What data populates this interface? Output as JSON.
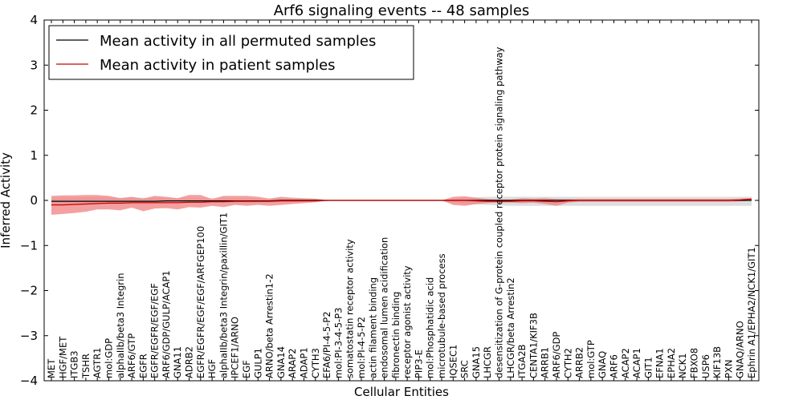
{
  "chart_data": {
    "type": "line",
    "title": "Arf6 signaling events -- 48 samples",
    "xlabel": "Cellular Entities",
    "ylabel": "Inferred Activity",
    "ylim": [
      -4,
      4
    ],
    "yticks": [
      -4,
      -3,
      -2,
      -1,
      0,
      1,
      2,
      3,
      4
    ],
    "ytick_labels": [
      "−4",
      "−3",
      "−2",
      "−1",
      "0",
      "1",
      "2",
      "3",
      "4"
    ],
    "grid": false,
    "legend_position": "top-left",
    "colors": {
      "permuted_line": "#000000",
      "patient_line": "#cc0000",
      "patient_band": "#f08080",
      "permuted_band": "#c8c8c8"
    },
    "categories": [
      "MET",
      "HGF/MET",
      "ITGB3",
      "TSHR",
      "AGTR1",
      "mol:GDP",
      "alphaIIb/beta3 Integrin",
      "ARF6/GTP",
      "EGFR",
      "EGFR/EGFR/EGF/EGF",
      "ARF6/GDP/GULP/ACAP1",
      "GNA11",
      "ADRB2",
      "EGFR/EGFR/EGF/EGF/ARFGEP100",
      "HGF",
      "alphaIIb/beta3 Integrin/paxillin/GIT1",
      "IPCEF1/ARNO",
      "EGF",
      "GULP1",
      "ARNO/beta Arrestin1-2",
      "GNA14",
      "ARAP2",
      "ADAP1",
      "CYTH3",
      "EFA6/PI-4-5-P2",
      "mol:PI-3-4-5-P3",
      "somatostatin receptor activity",
      "mol:PI-4-5-P2",
      "actin filament binding",
      "endosomal lumen acidification",
      "fibronectin binding",
      "receptor agonist activity",
      "PIP3-E",
      "mol:Phosphatidic acid",
      "microtubule-based process",
      "IQSEC1",
      "SRC",
      "GNA15",
      "LHCGR",
      "desensitization of G-protein coupled receptor protein signaling pathway",
      "LHCGR/beta Arrestin2",
      "ITGA2B",
      "CENTA1/KIF3B",
      "ARRB1",
      "ARF6/GDP",
      "CYTH2",
      "ARRB2",
      "mol:GTP",
      "GNAQ",
      "ARF6",
      "ACAP2",
      "ACAP1",
      "GIT1",
      "EFNA1",
      "EPHA2",
      "NCK1",
      "FBXO8",
      "USP6",
      "KIF13B",
      "PXN",
      "GNAQ/ARNO",
      "Ephrin A1/EPHA2/NCK1/GIT1"
    ],
    "series": [
      {
        "name": "Mean activity in all permuted samples",
        "values": [
          -0.02,
          -0.02,
          -0.02,
          -0.02,
          -0.02,
          -0.02,
          -0.02,
          -0.02,
          -0.02,
          -0.02,
          -0.01,
          -0.01,
          -0.01,
          -0.01,
          -0.01,
          -0.01,
          -0.01,
          -0.01,
          -0.01,
          -0.01,
          0,
          0,
          0,
          0,
          0,
          0,
          0,
          0,
          0,
          0,
          0,
          0,
          0,
          0,
          0,
          0,
          0,
          0,
          0,
          0,
          0,
          0,
          0,
          0,
          0,
          0,
          0,
          0,
          0,
          0,
          0,
          0,
          0,
          0,
          0,
          0,
          0,
          0,
          0,
          0,
          0,
          0
        ],
        "band_upper": [
          0.05,
          0.06,
          0.06,
          0.07,
          0.07,
          0.06,
          0.06,
          0.06,
          0.06,
          0.06,
          0.05,
          0.05,
          0.05,
          0.05,
          0.05,
          0.05,
          0.05,
          0.05,
          0.04,
          0.04,
          0.03,
          0.03,
          0.02,
          0.01,
          0.01,
          0,
          0,
          0,
          0,
          0,
          0,
          0,
          0,
          0,
          0,
          0.03,
          0.06,
          0.07,
          0.08,
          0.08,
          0.08,
          0.08,
          0.08,
          0.08,
          0.08,
          0.08,
          0.08,
          0.08,
          0.08,
          0.08,
          0.08,
          0.08,
          0.08,
          0.08,
          0.08,
          0.08,
          0.08,
          0.08,
          0.08,
          0.08,
          0.08,
          0.08
        ],
        "band_lower": [
          -0.1,
          -0.1,
          -0.1,
          -0.1,
          -0.09,
          -0.09,
          -0.09,
          -0.09,
          -0.09,
          -0.08,
          -0.08,
          -0.08,
          -0.07,
          -0.07,
          -0.06,
          -0.06,
          -0.06,
          -0.06,
          -0.05,
          -0.05,
          -0.04,
          -0.03,
          -0.02,
          -0.01,
          -0.01,
          0,
          0,
          0,
          0,
          0,
          0,
          0,
          0,
          0,
          0,
          -0.05,
          -0.08,
          -0.09,
          -0.1,
          -0.11,
          -0.12,
          -0.12,
          -0.12,
          -0.12,
          -0.12,
          -0.12,
          -0.12,
          -0.12,
          -0.12,
          -0.12,
          -0.12,
          -0.12,
          -0.12,
          -0.12,
          -0.12,
          -0.12,
          -0.12,
          -0.12,
          -0.12,
          -0.12,
          -0.12,
          -0.12
        ]
      },
      {
        "name": "Mean activity in patient samples",
        "values": [
          -0.1,
          -0.1,
          -0.09,
          -0.08,
          -0.07,
          -0.06,
          -0.06,
          -0.05,
          -0.05,
          -0.05,
          -0.05,
          -0.05,
          -0.04,
          -0.04,
          -0.03,
          -0.03,
          -0.02,
          -0.02,
          -0.02,
          -0.02,
          -0.01,
          -0.01,
          -0.01,
          -0.01,
          0,
          0,
          0,
          0,
          0,
          0,
          0,
          0,
          0,
          0,
          0,
          0,
          0,
          -0.01,
          -0.02,
          -0.02,
          -0.02,
          -0.01,
          -0.01,
          -0.02,
          -0.03,
          -0.01,
          0,
          0,
          0,
          0,
          0,
          0,
          0,
          0,
          0,
          0,
          0,
          0,
          0,
          0,
          0.01,
          0.03
        ],
        "band_upper": [
          0.1,
          0.11,
          0.11,
          0.12,
          0.12,
          0.1,
          0.05,
          0.08,
          0.04,
          0.1,
          0.08,
          0.05,
          0.12,
          0.12,
          0.03,
          0.1,
          0.1,
          0.1,
          0.08,
          0.04,
          0.08,
          0.06,
          0.05,
          0.04,
          0.01,
          0,
          0,
          0,
          0,
          0,
          0,
          0,
          0,
          0,
          0,
          0.08,
          0.09,
          0.06,
          0.03,
          0.02,
          0.02,
          0.05,
          0.04,
          0.05,
          0.03,
          0.03,
          0.03,
          0.03,
          0.03,
          0.03,
          0.03,
          0.03,
          0.03,
          0.03,
          0.03,
          0.03,
          0.03,
          0.03,
          0.03,
          0.03,
          0.04,
          0.05
        ],
        "band_lower": [
          -0.32,
          -0.3,
          -0.28,
          -0.25,
          -0.2,
          -0.2,
          -0.22,
          -0.16,
          -0.24,
          -0.18,
          -0.17,
          -0.2,
          -0.15,
          -0.16,
          -0.12,
          -0.15,
          -0.1,
          -0.12,
          -0.1,
          -0.12,
          -0.1,
          -0.08,
          -0.06,
          -0.04,
          -0.01,
          0,
          0,
          0,
          0,
          0,
          0,
          0,
          0,
          0,
          0,
          -0.1,
          -0.12,
          -0.08,
          -0.06,
          -0.05,
          -0.05,
          -0.06,
          -0.05,
          -0.08,
          -0.12,
          -0.05,
          -0.03,
          -0.03,
          -0.03,
          -0.03,
          -0.03,
          -0.03,
          -0.03,
          -0.03,
          -0.03,
          -0.03,
          -0.03,
          -0.03,
          -0.03,
          -0.03,
          -0.02,
          0
        ]
      }
    ]
  }
}
